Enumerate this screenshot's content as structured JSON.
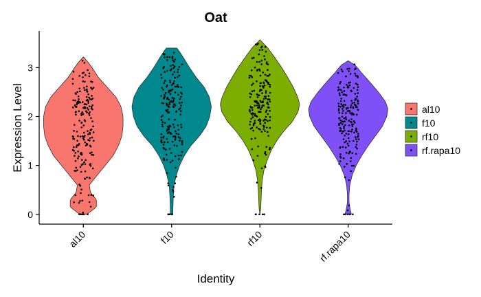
{
  "chart_data": {
    "type": "violin",
    "title": "Oat",
    "xlabel": "Identity",
    "ylabel": "Expression Level",
    "ylim": [
      -0.2,
      3.75
    ],
    "yticks": [
      0,
      1,
      2,
      3
    ],
    "grid": false,
    "legend_position": "right",
    "categories": [
      "al10",
      "f10",
      "rf10",
      "rf.rapa10"
    ],
    "colors": [
      "#F8766D",
      "#00888F",
      "#7CAE00",
      "#7F4FF8"
    ],
    "violins": [
      {
        "name": "al10",
        "min": 0.0,
        "max": 3.22,
        "profile": [
          [
            0.0,
            0.09
          ],
          [
            0.15,
            0.33
          ],
          [
            0.3,
            0.33
          ],
          [
            0.45,
            0.18
          ],
          [
            0.6,
            0.15
          ],
          [
            0.8,
            0.35
          ],
          [
            1.0,
            0.55
          ],
          [
            1.2,
            0.75
          ],
          [
            1.4,
            0.88
          ],
          [
            1.6,
            0.97
          ],
          [
            1.8,
            1.0
          ],
          [
            2.0,
            1.0
          ],
          [
            2.2,
            0.95
          ],
          [
            2.4,
            0.82
          ],
          [
            2.6,
            0.6
          ],
          [
            2.8,
            0.38
          ],
          [
            3.0,
            0.22
          ],
          [
            3.1,
            0.13
          ],
          [
            3.22,
            0.0
          ]
        ],
        "median": 1.8
      },
      {
        "name": "f10",
        "min": 0.0,
        "max": 3.4,
        "profile": [
          [
            0.0,
            0.03
          ],
          [
            0.3,
            0.04
          ],
          [
            0.6,
            0.06
          ],
          [
            0.8,
            0.12
          ],
          [
            1.0,
            0.2
          ],
          [
            1.2,
            0.32
          ],
          [
            1.4,
            0.48
          ],
          [
            1.6,
            0.7
          ],
          [
            1.8,
            0.87
          ],
          [
            2.0,
            0.96
          ],
          [
            2.2,
            1.0
          ],
          [
            2.4,
            0.95
          ],
          [
            2.6,
            0.82
          ],
          [
            2.8,
            0.62
          ],
          [
            3.0,
            0.45
          ],
          [
            3.2,
            0.3
          ],
          [
            3.35,
            0.18
          ],
          [
            3.4,
            0.13
          ]
        ],
        "median": 2.2
      },
      {
        "name": "rf10",
        "min": 0.0,
        "max": 3.57,
        "profile": [
          [
            0.0,
            0.0
          ],
          [
            0.1,
            0.02
          ],
          [
            0.3,
            0.03
          ],
          [
            0.5,
            0.04
          ],
          [
            0.7,
            0.06
          ],
          [
            0.9,
            0.1
          ],
          [
            1.1,
            0.18
          ],
          [
            1.3,
            0.28
          ],
          [
            1.5,
            0.42
          ],
          [
            1.7,
            0.6
          ],
          [
            1.9,
            0.82
          ],
          [
            2.1,
            0.96
          ],
          [
            2.25,
            1.0
          ],
          [
            2.4,
            0.95
          ],
          [
            2.6,
            0.84
          ],
          [
            2.8,
            0.7
          ],
          [
            3.0,
            0.55
          ],
          [
            3.2,
            0.38
          ],
          [
            3.4,
            0.2
          ],
          [
            3.57,
            0.0
          ]
        ],
        "median": 2.25
      },
      {
        "name": "rf.rapa10",
        "min": 0.0,
        "max": 3.14,
        "profile": [
          [
            0.0,
            0.08
          ],
          [
            0.1,
            0.05
          ],
          [
            0.25,
            0.02
          ],
          [
            0.4,
            0.02
          ],
          [
            0.6,
            0.04
          ],
          [
            0.8,
            0.1
          ],
          [
            1.0,
            0.2
          ],
          [
            1.2,
            0.34
          ],
          [
            1.4,
            0.5
          ],
          [
            1.6,
            0.68
          ],
          [
            1.8,
            0.86
          ],
          [
            2.0,
            0.97
          ],
          [
            2.15,
            1.0
          ],
          [
            2.3,
            0.94
          ],
          [
            2.5,
            0.76
          ],
          [
            2.7,
            0.55
          ],
          [
            2.9,
            0.33
          ],
          [
            3.05,
            0.18
          ],
          [
            3.14,
            0.0
          ]
        ],
        "median": 2.0
      }
    ]
  },
  "legend": {
    "items": [
      {
        "label": "al10",
        "color": "#F8766D"
      },
      {
        "label": "f10",
        "color": "#00888F"
      },
      {
        "label": "rf10",
        "color": "#7CAE00"
      },
      {
        "label": "rf.rapa10",
        "color": "#7F4FF8"
      }
    ]
  }
}
